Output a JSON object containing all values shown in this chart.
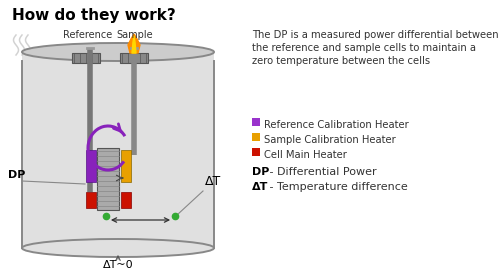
{
  "title": "How do they work?",
  "title_fontsize": 11,
  "desc_text": "The DP is a measured power differential between\nthe reference and sample cells to maintain a\nzero temperature between the cells",
  "legend_items": [
    {
      "color": "#9933CC",
      "label": "Reference Calibration Heater"
    },
    {
      "color": "#E8A000",
      "label": "Sample Calibration Heater"
    },
    {
      "color": "#CC1100",
      "label": "Cell Main Heater"
    }
  ],
  "dp_label": "DP",
  "dp_desc": " - Differential Power",
  "dt_label": "ΔT",
  "dt_desc": " - Temperature difference",
  "dt_zero": "ΔT~0",
  "dt_arrow_label": "ΔT",
  "reference_label": "Reference",
  "sample_label": "Sample",
  "bg_color": "#ffffff",
  "cylinder_fill": "#e0e0e0",
  "cylinder_border": "#888888",
  "purple_color": "#8822BB",
  "orange_color": "#E8A000",
  "red_color": "#CC1100",
  "green_color": "#33AA33",
  "cell_fill": "#aaaaaa",
  "cell_dark": "#666666"
}
